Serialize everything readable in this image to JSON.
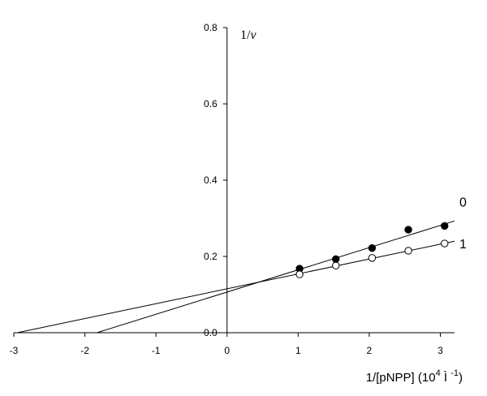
{
  "chart_data": {
    "type": "scatter",
    "ylabel": "1/v",
    "ylabel_parts": {
      "prefix": "1/",
      "var": "v"
    },
    "xlabel": "1/[pNPP] (10⁴ Ì ⁻¹)",
    "xlabel_parts": {
      "before_sup": "1/[pNPP] (10",
      "sup1": "4",
      "middle": " Ì ",
      "sup2": "-1",
      "after": ")"
    },
    "xlim": [
      -3,
      3.2
    ],
    "ylim": [
      0,
      0.8
    ],
    "x_ticks": [
      -3,
      -2,
      -1,
      0,
      1,
      2,
      3
    ],
    "x_tick_labels": [
      "-3",
      "-2",
      "-1",
      "0",
      "1",
      "2",
      "3"
    ],
    "y_ticks": [
      0,
      0.2,
      0.4,
      0.6,
      0.8
    ],
    "y_tick_labels": [
      "0.0",
      "0.2",
      "0.4",
      "0.6",
      "0.8"
    ],
    "grid": false,
    "series": [
      {
        "name": "0",
        "marker": "filled-circle",
        "x": [
          1.02,
          1.53,
          2.04,
          2.55,
          3.06
        ],
        "y": [
          0.168,
          0.193,
          0.222,
          0.27,
          0.28
        ],
        "fit_line": {
          "x": [
            -1.83,
            3.2
          ],
          "y": [
            0,
            0.293
          ]
        }
      },
      {
        "name": "1",
        "marker": "open-circle",
        "x": [
          1.02,
          1.53,
          2.04,
          2.55,
          3.06
        ],
        "y": [
          0.153,
          0.176,
          0.196,
          0.215,
          0.234
        ],
        "fit_line": {
          "x": [
            -2.95,
            3.2
          ],
          "y": [
            0,
            0.24
          ]
        }
      }
    ]
  },
  "colors": {
    "axis": "#000000",
    "filled_marker": "#000000",
    "open_marker_fill": "#ffffff"
  }
}
